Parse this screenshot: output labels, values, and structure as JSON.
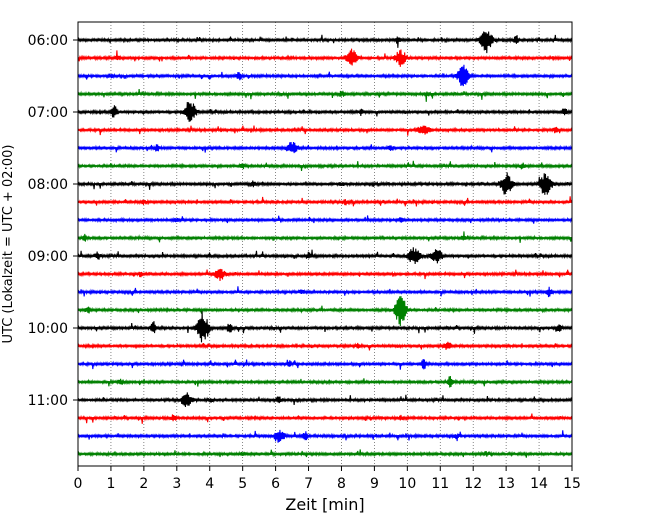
{
  "chart_data": {
    "type": "line",
    "title": "",
    "xlabel": "Zeit  [min]",
    "ylabel": "UTC (Lokalzeit = UTC + 02:00)",
    "xlim": [
      0,
      15
    ],
    "x_ticks": [
      0,
      1,
      2,
      3,
      4,
      5,
      6,
      7,
      8,
      9,
      10,
      11,
      12,
      13,
      14,
      15
    ],
    "y_tick_labels": [
      "06:00",
      "07:00",
      "08:00",
      "09:00",
      "10:00",
      "11:00"
    ],
    "vertical_grid": "dotted",
    "colors": {
      "black": "#000000",
      "red": "#ff0000",
      "blue": "#0000ff",
      "green": "#008000"
    },
    "trace_minutes": 15,
    "series": [
      {
        "start": "06:00",
        "color": "black",
        "events": [
          [
            12.4,
            13,
            2
          ],
          [
            9.7,
            4,
            1
          ],
          [
            13.3,
            3,
            1
          ]
        ]
      },
      {
        "start": "06:15",
        "color": "red",
        "events": [
          [
            8.3,
            9,
            2
          ],
          [
            9.8,
            8,
            2
          ],
          [
            1.2,
            2,
            1
          ]
        ]
      },
      {
        "start": "06:30",
        "color": "blue",
        "events": [
          [
            11.7,
            11,
            2
          ],
          [
            4.9,
            4,
            1
          ],
          [
            1.0,
            2,
            1
          ]
        ]
      },
      {
        "start": "06:45",
        "color": "green",
        "events": [
          [
            8.0,
            3,
            1
          ],
          [
            10.6,
            3,
            1
          ]
        ]
      },
      {
        "start": "07:00",
        "color": "black",
        "events": [
          [
            3.4,
            12,
            2
          ],
          [
            1.1,
            7,
            1
          ],
          [
            8.6,
            3,
            1
          ],
          [
            14.8,
            3,
            1
          ]
        ]
      },
      {
        "start": "07:15",
        "color": "red",
        "events": [
          [
            10.5,
            6,
            2
          ],
          [
            14.5,
            3,
            1
          ]
        ]
      },
      {
        "start": "07:30",
        "color": "blue",
        "events": [
          [
            6.5,
            6,
            2
          ],
          [
            2.4,
            3,
            1
          ],
          [
            9.5,
            3,
            1
          ]
        ]
      },
      {
        "start": "07:45",
        "color": "green",
        "events": [
          [
            13.5,
            3,
            1
          ],
          [
            5.0,
            2,
            1
          ]
        ]
      },
      {
        "start": "08:00",
        "color": "black",
        "events": [
          [
            13.0,
            12,
            2
          ],
          [
            14.2,
            13,
            2
          ],
          [
            5.3,
            3,
            1
          ],
          [
            8.0,
            2,
            1
          ]
        ]
      },
      {
        "start": "08:15",
        "color": "red",
        "events": [
          [
            8.1,
            3,
            1
          ],
          [
            2.0,
            2,
            1
          ]
        ]
      },
      {
        "start": "08:30",
        "color": "blue",
        "events": [
          [
            9.8,
            2,
            1
          ],
          [
            3.0,
            2,
            1
          ]
        ]
      },
      {
        "start": "08:45",
        "color": "green",
        "events": [
          [
            0.2,
            3,
            1
          ],
          [
            11.7,
            2,
            1
          ]
        ]
      },
      {
        "start": "09:00",
        "color": "black",
        "events": [
          [
            10.2,
            9,
            2
          ],
          [
            10.9,
            7,
            2
          ],
          [
            0.6,
            4,
            1
          ],
          [
            7.0,
            3,
            1
          ]
        ]
      },
      {
        "start": "09:15",
        "color": "red",
        "events": [
          [
            4.3,
            6,
            2
          ],
          [
            1.9,
            2,
            1
          ]
        ]
      },
      {
        "start": "09:30",
        "color": "blue",
        "events": [
          [
            14.3,
            5,
            1
          ],
          [
            6.8,
            2,
            1
          ]
        ]
      },
      {
        "start": "09:45",
        "color": "green",
        "events": [
          [
            9.8,
            16,
            2
          ],
          [
            0.3,
            3,
            1
          ]
        ]
      },
      {
        "start": "10:00",
        "color": "black",
        "events": [
          [
            3.8,
            16,
            2
          ],
          [
            2.3,
            6,
            1
          ],
          [
            4.6,
            5,
            1
          ],
          [
            14.6,
            4,
            1
          ]
        ]
      },
      {
        "start": "10:15",
        "color": "red",
        "events": [
          [
            11.2,
            5,
            1
          ],
          [
            8.5,
            2,
            1
          ]
        ]
      },
      {
        "start": "10:30",
        "color": "blue",
        "events": [
          [
            10.5,
            5,
            1
          ],
          [
            6.4,
            3,
            1
          ]
        ]
      },
      {
        "start": "10:45",
        "color": "green",
        "events": [
          [
            11.3,
            6,
            1
          ],
          [
            1.3,
            3,
            1
          ]
        ]
      },
      {
        "start": "11:00",
        "color": "black",
        "events": [
          [
            3.3,
            7,
            2
          ],
          [
            6.1,
            3,
            1
          ],
          [
            4.0,
            2,
            1
          ]
        ]
      },
      {
        "start": "11:15",
        "color": "red",
        "events": [
          [
            2.9,
            3,
            1
          ],
          [
            9.8,
            2,
            1
          ]
        ]
      },
      {
        "start": "11:30",
        "color": "blue",
        "events": [
          [
            6.1,
            6,
            2
          ],
          [
            6.9,
            5,
            1
          ],
          [
            11.5,
            2,
            1
          ]
        ]
      },
      {
        "start": "11:45",
        "color": "green",
        "events": [
          [
            5.0,
            2,
            1
          ],
          [
            12.4,
            2,
            1
          ]
        ]
      }
    ]
  }
}
